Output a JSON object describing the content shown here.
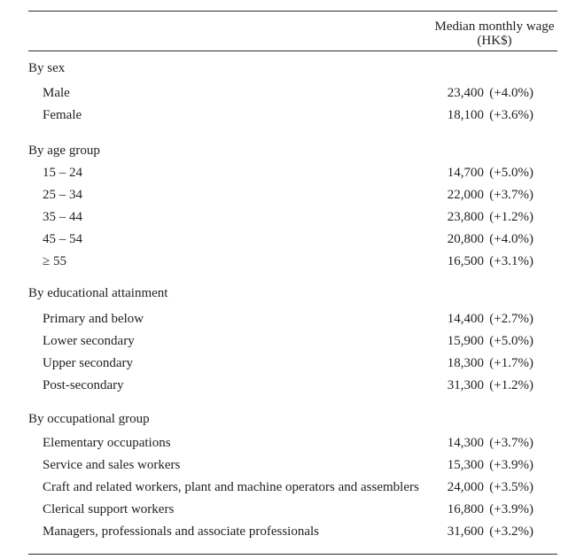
{
  "colors": {
    "text": "#1f1f1f",
    "rule": "#2b2b2b",
    "background": "#ffffff"
  },
  "table": {
    "header": {
      "line1": "Median monthly wage",
      "line2": "(HK$)"
    },
    "sections": [
      {
        "title": "By sex",
        "rows": [
          {
            "label": "Male",
            "wage": "23,400",
            "change": "(+4.0%)"
          },
          {
            "label": "Female",
            "wage": "18,100",
            "change": "(+3.6%)"
          }
        ]
      },
      {
        "title": "By age group",
        "rows": [
          {
            "label": "15 – 24",
            "wage": "14,700",
            "change": "(+5.0%)"
          },
          {
            "label": "25 – 34",
            "wage": "22,000",
            "change": "(+3.7%)"
          },
          {
            "label": "35 – 44",
            "wage": "23,800",
            "change": "(+1.2%)"
          },
          {
            "label": "45 – 54",
            "wage": "20,800",
            "change": "(+4.0%)"
          },
          {
            "label": "≥ 55",
            "wage": "16,500",
            "change": "(+3.1%)"
          }
        ]
      },
      {
        "title": "By educational attainment",
        "rows": [
          {
            "label": "Primary and below",
            "wage": "14,400",
            "change": "(+2.7%)"
          },
          {
            "label": "Lower secondary",
            "wage": "15,900",
            "change": "(+5.0%)"
          },
          {
            "label": "Upper secondary",
            "wage": "18,300",
            "change": "(+1.7%)"
          },
          {
            "label": "Post-secondary",
            "wage": "31,300",
            "change": "(+1.2%)"
          }
        ]
      },
      {
        "title": "By occupational group",
        "rows": [
          {
            "label": "Elementary occupations",
            "wage": "14,300",
            "change": "(+3.7%)"
          },
          {
            "label": "Service and sales workers",
            "wage": "15,300",
            "change": "(+3.9%)"
          },
          {
            "label": "Craft and related workers, plant and machine operators and assemblers",
            "wage": "24,000",
            "change": "(+3.5%)"
          },
          {
            "label": "Clerical support workers",
            "wage": "16,800",
            "change": "(+3.9%)"
          },
          {
            "label": "Managers, professionals and associate professionals",
            "wage": "31,600",
            "change": "(+3.2%)"
          }
        ]
      }
    ]
  }
}
